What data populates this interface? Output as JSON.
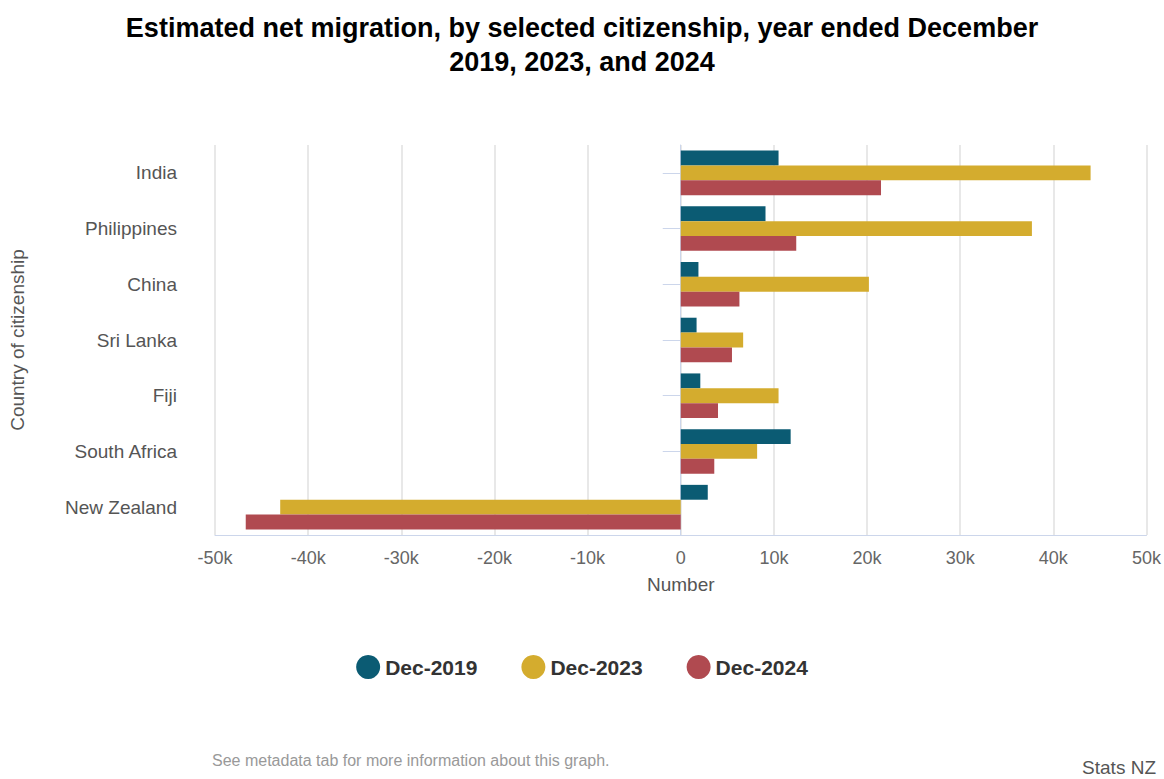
{
  "chart_data": {
    "type": "bar",
    "title": "Estimated net migration, by selected citizenship, year ended December\n2019, 2023, and 2024",
    "xlabel": "Number",
    "ylabel": "Country of citizenship",
    "categories": [
      "India",
      "Philippines",
      "China",
      "Sri Lanka",
      "Fiji",
      "South Africa",
      "New Zealand"
    ],
    "series": [
      {
        "name": "Dec-2019",
        "color": "#0b5b73",
        "values": [
          10500,
          9100,
          1900,
          1700,
          2100,
          11800,
          2900
        ]
      },
      {
        "name": "Dec-2023",
        "color": "#d4ac2e",
        "values": [
          44000,
          37700,
          20200,
          6700,
          10500,
          8200,
          -43000
        ]
      },
      {
        "name": "Dec-2024",
        "color": "#b04a50",
        "values": [
          21500,
          12400,
          6300,
          5500,
          4000,
          3600,
          -46700
        ]
      }
    ],
    "xlim": [
      -50000,
      50000
    ],
    "xticks": [
      {
        "value": -50000,
        "label": "-50k"
      },
      {
        "value": -40000,
        "label": "-40k"
      },
      {
        "value": -30000,
        "label": "-30k"
      },
      {
        "value": -20000,
        "label": "-20k"
      },
      {
        "value": -10000,
        "label": "-10k"
      },
      0,
      {
        "value": 10000,
        "label": "10k"
      },
      {
        "value": 20000,
        "label": "20k"
      },
      {
        "value": 30000,
        "label": "30k"
      },
      {
        "value": 40000,
        "label": "40k"
      },
      {
        "value": 50000,
        "label": "50k"
      }
    ],
    "orientation": "horizontal",
    "grid": true,
    "legend": "bottom",
    "data_labels": false,
    "notes": [
      "See metadata tab for more information about this graph."
    ],
    "source": "Stats NZ"
  }
}
